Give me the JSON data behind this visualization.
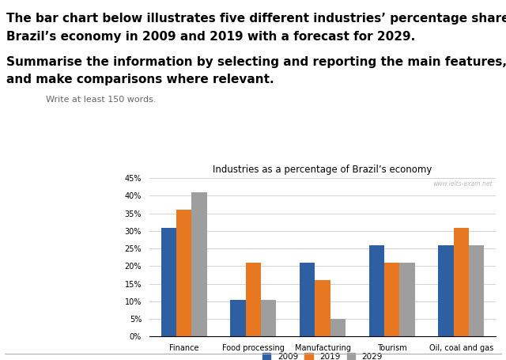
{
  "title": "Industries as a percentage of Brazil’s economy",
  "watermark": "www.ielts-exam.net",
  "categories": [
    "Finance",
    "Food processing",
    "Manufacturing",
    "Tourism",
    "Oil, coal and gas"
  ],
  "years": [
    "2009",
    "2019",
    "2029"
  ],
  "values": {
    "2009": [
      31,
      10.5,
      21,
      26,
      26
    ],
    "2019": [
      36,
      21,
      16,
      21,
      31
    ],
    "2029": [
      41,
      10.5,
      5,
      21,
      26
    ]
  },
  "colors": {
    "2009": "#2E5FA3",
    "2019": "#E87722",
    "2029": "#9E9E9E"
  },
  "ylim": [
    0,
    45
  ],
  "yticks": [
    0,
    5,
    10,
    15,
    20,
    25,
    30,
    35,
    40,
    45
  ],
  "ytick_labels": [
    "0%",
    "5%",
    "10%",
    "15%",
    "20%",
    "25%",
    "30%",
    "35%",
    "40%",
    "45%"
  ],
  "header_line1": "The bar chart below illustrates five different industries’ percentage share of",
  "header_line2": "Brazil’s economy in 2009 and 2019 with a forecast for 2029.",
  "subheader_line1": "Summarise the information by selecting and reporting the main features,",
  "subheader_line2": "and make comparisons where relevant.",
  "instruction_text": "Write at least 150 words.",
  "bar_width": 0.22
}
